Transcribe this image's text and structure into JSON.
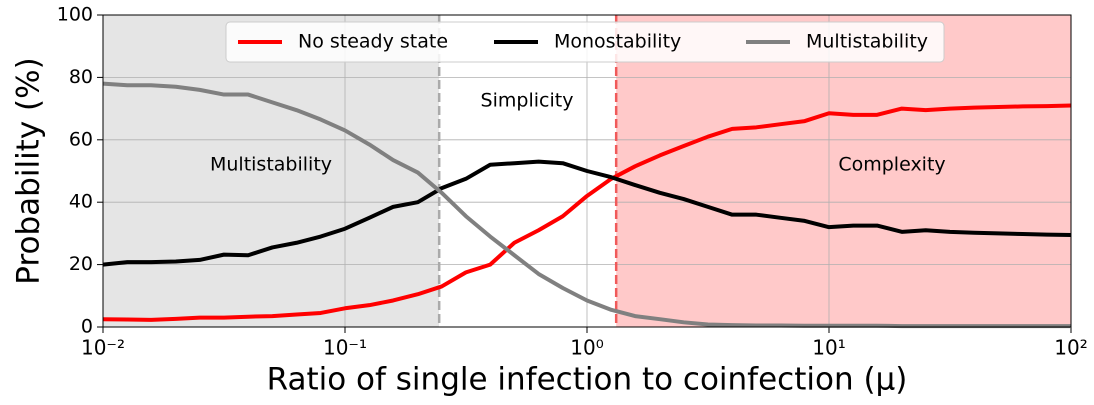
{
  "chart_data": {
    "type": "line",
    "xlabel": "Ratio of single infection to coinfection (μ)",
    "ylabel": "Probability (%)",
    "xscale": "log",
    "xlim": [
      0.01,
      100
    ],
    "ylim": [
      0,
      100
    ],
    "xticks": [
      {
        "value": 0.01,
        "label": "10⁻²"
      },
      {
        "value": 0.1,
        "label": "10⁻¹"
      },
      {
        "value": 1,
        "label": "10⁰"
      },
      {
        "value": 10,
        "label": "10¹"
      },
      {
        "value": 100,
        "label": "10²"
      }
    ],
    "yticks": [
      0,
      20,
      40,
      60,
      80,
      100
    ],
    "grid": true,
    "legend": "top",
    "regions": [
      {
        "label": "Multistability",
        "x": [
          0.01,
          0.245
        ],
        "color": "#e5e5e5",
        "line_color": "#aaaaaa"
      },
      {
        "label": "Simplicity",
        "x": [
          0.245,
          1.32
        ],
        "color": "#ffffff",
        "line_color": "#f05a5a"
      },
      {
        "label": "Complexity",
        "x": [
          1.32,
          100
        ],
        "color": "#ffc9c9",
        "line_color": "#f05a5a"
      }
    ],
    "x": [
      0.01,
      0.0126,
      0.0158,
      0.02,
      0.0251,
      0.0316,
      0.0398,
      0.0501,
      0.0631,
      0.0794,
      0.1,
      0.126,
      0.158,
      0.2,
      0.251,
      0.316,
      0.398,
      0.501,
      0.631,
      0.794,
      1,
      1.26,
      1.58,
      2,
      2.51,
      3.16,
      3.98,
      5.01,
      6.31,
      7.94,
      10,
      12.6,
      15.8,
      20,
      25.1,
      31.6,
      39.8,
      50.1,
      63.1,
      79.4,
      100
    ],
    "series": [
      {
        "name": "No steady state",
        "color": "#ff0000",
        "values": [
          2.5,
          2.4,
          2.3,
          2.6,
          3,
          3,
          3.3,
          3.5,
          4,
          4.5,
          6,
          7,
          8.5,
          10.5,
          13,
          17.5,
          20,
          27,
          31,
          35.5,
          42,
          47.5,
          51.5,
          55,
          58,
          61,
          63.5,
          64,
          65,
          66,
          68.5,
          68,
          68,
          70,
          69.5,
          70,
          70.3,
          70.5,
          70.7,
          70.8,
          71
        ]
      },
      {
        "name": "Monostability",
        "color": "#000000",
        "values": [
          20,
          20.8,
          20.8,
          21,
          21.5,
          23.2,
          23,
          25.5,
          27,
          29,
          31.5,
          35,
          38.5,
          40,
          44.5,
          47.5,
          52,
          52.5,
          53,
          52.5,
          50,
          48,
          45.5,
          43,
          41,
          38.5,
          36,
          36,
          35,
          34,
          32,
          32.5,
          32.5,
          30.5,
          31,
          30.5,
          30.2,
          30,
          29.8,
          29.6,
          29.5
        ]
      },
      {
        "name": "Multistability",
        "color": "#808080",
        "values": [
          78,
          77.5,
          77.5,
          77,
          76,
          74.5,
          74.5,
          72,
          69.5,
          66.5,
          63,
          58.5,
          53.5,
          49.5,
          43,
          35.5,
          29,
          23,
          17,
          12.5,
          8.5,
          5.5,
          3.5,
          2.5,
          1.5,
          0.8,
          0.6,
          0.5,
          0.5,
          0.4,
          0.4,
          0.4,
          0.4,
          0.3,
          0.3,
          0.3,
          0.3,
          0.3,
          0.3,
          0.3,
          0.3
        ]
      }
    ]
  }
}
